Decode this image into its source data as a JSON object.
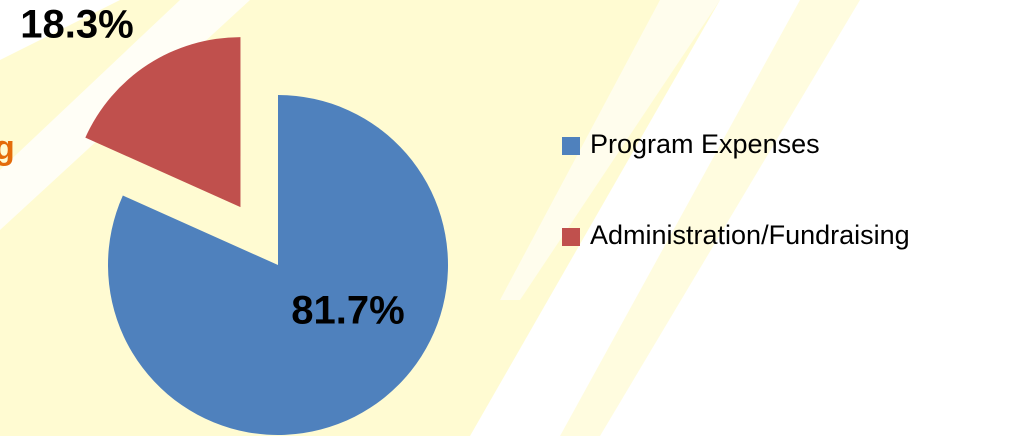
{
  "chart_data": {
    "type": "pie",
    "annotation": "g",
    "categories": [
      "Program Expenses",
      "Administration/Fundraising"
    ],
    "values": [
      81.7,
      18.3
    ],
    "value_labels": [
      "81.7%",
      "18.3%"
    ],
    "colors": [
      "#4f81bd",
      "#c0504d"
    ],
    "exploded": [
      false,
      true
    ],
    "legend": "right"
  }
}
